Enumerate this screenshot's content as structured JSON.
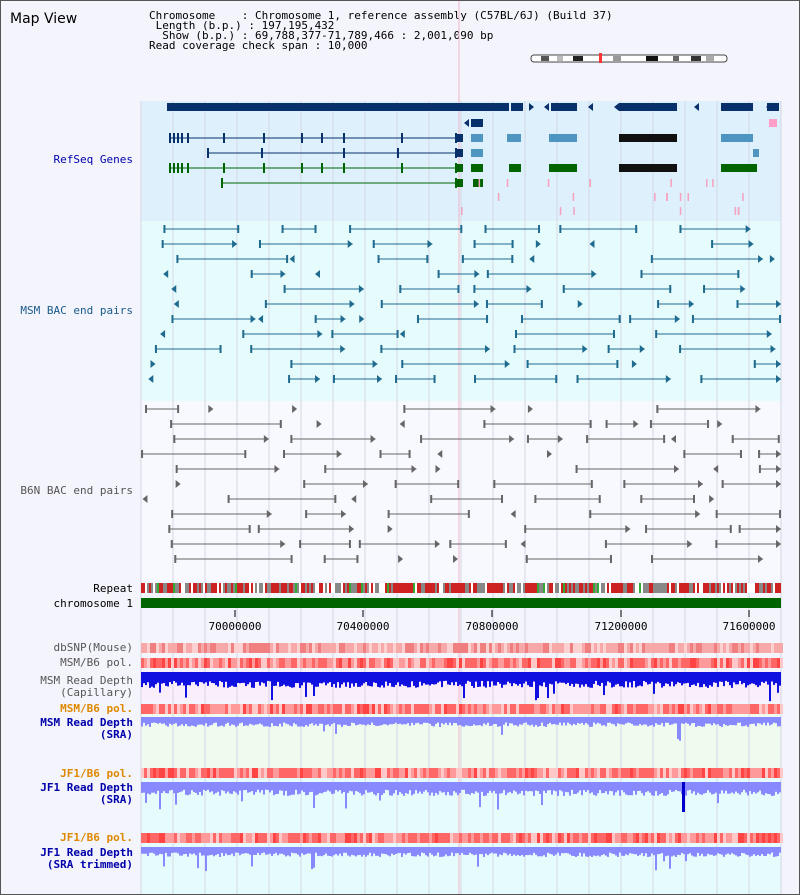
{
  "view_title": "Map View",
  "info": {
    "chromosome": "Chromosome    : Chromosome 1, reference assembly (C57BL/6J) (Build 37)",
    "length": " Length (b.p.) : 197,195,432",
    "show": "  Show (b.p.) : 69,788,377-71,789,466 : 2,001,090 bp",
    "coverage": "Read coverage check span : 10,000"
  },
  "tracks": {
    "refseq": "RefSeq Genes",
    "msm_bac": "MSM BAC end pairs",
    "b6n_bac": "B6N BAC end pairs",
    "repeat": "Repeat",
    "chromosome": "chromosome 1",
    "dbsnp": "dbSNP(Mouse)",
    "msm_b6_pol_1": "MSM/B6 pol.",
    "msm_depth_cap_1": "MSM Read Depth",
    "msm_depth_cap_2": "(Capillary)",
    "msm_b6_pol_2": "MSM/B6 pol.",
    "msm_depth_sra_1": "MSM Read Depth",
    "msm_depth_sra_2": "(SRA)",
    "jf1_pol_1": "JF1/B6 pol.",
    "jf1_depth_sra_1": "JF1 Read Depth",
    "jf1_depth_sra_2": "(SRA)",
    "jf1_pol_2": "JF1/B6 pol.",
    "jf1_depth_trim_1": "JF1 Read Depth",
    "jf1_depth_trim_2": "(SRA trimmed)"
  },
  "axis_ticks": [
    "70000000",
    "70400000",
    "70800000",
    "71200000",
    "71600000"
  ],
  "colors": {
    "refseq_bg": "#ddf0fb",
    "bac_bg": "#e6fcfc",
    "refseq_label": "#0000aa",
    "msm_label": "#1a5a8a",
    "b6n_label": "#555555",
    "msm_feature": "#1f6a8f",
    "b6n_feature": "#666666",
    "gene_dark": "#08306b",
    "gene_green": "#006400",
    "gene_light": "#4f95c2",
    "chromosome_bar": "#006400",
    "pol_label": "#dd8800",
    "depth_label": "#0000aa",
    "depth_capillary": "#1010e0",
    "depth_sra": "#8888ff"
  }
}
